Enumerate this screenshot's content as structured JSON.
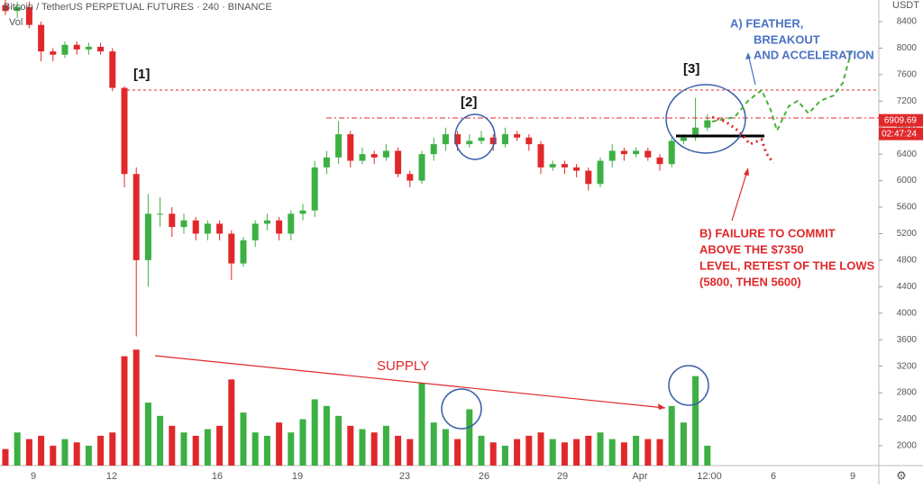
{
  "header": {
    "symbol": "Bitcoin / TetherUS PERPETUAL FUTURES · 240 · BINANCE",
    "volume_label": "Vol",
    "currency": "USDT"
  },
  "chart_data": {
    "type": "candlestick",
    "open": [
      8650,
      8560,
      8620,
      8350,
      7950,
      7900,
      8050,
      7980,
      8020,
      7950,
      7400,
      6100,
      4800,
      5500,
      5500,
      5300,
      5400,
      5200,
      5350,
      5200,
      4750,
      5100,
      5350,
      5400,
      5200,
      5500,
      5550,
      6200,
      6350,
      6700,
      6300,
      6400,
      6350,
      6450,
      6100,
      6000,
      6400,
      6550,
      6700,
      6550,
      6600,
      6650,
      6550,
      6700,
      6650,
      6550,
      6200,
      6250,
      6200,
      6150,
      5950,
      6300,
      6450,
      6400,
      6450,
      6350,
      6250,
      6600,
      6650,
      6800
    ],
    "high": [
      8800,
      8700,
      8700,
      8400,
      8000,
      8100,
      8100,
      8080,
      8080,
      8000,
      7420,
      6200,
      5800,
      5750,
      5600,
      5500,
      5450,
      5400,
      5400,
      5250,
      5150,
      5400,
      5500,
      5450,
      5550,
      5650,
      6300,
      6450,
      6900,
      6750,
      6500,
      6450,
      6550,
      6500,
      6150,
      6450,
      6650,
      6800,
      6750,
      6700,
      6750,
      6700,
      6800,
      6750,
      6700,
      6600,
      6300,
      6300,
      6250,
      6200,
      6350,
      6550,
      6500,
      6500,
      6500,
      6400,
      6650,
      6700,
      7250,
      7000
    ],
    "low": [
      8500,
      8450,
      8300,
      7800,
      7800,
      7850,
      7900,
      7900,
      7900,
      7350,
      5900,
      3650,
      4400,
      5300,
      5150,
      5200,
      5100,
      5100,
      5100,
      4500,
      4700,
      5000,
      5250,
      5100,
      5100,
      5400,
      5450,
      6100,
      6250,
      6200,
      6250,
      6250,
      6300,
      6050,
      5900,
      5950,
      6300,
      6450,
      6450,
      6500,
      6550,
      6450,
      6500,
      6600,
      6450,
      6100,
      6150,
      6100,
      6050,
      5850,
      5900,
      6200,
      6300,
      6350,
      6300,
      6150,
      6200,
      6550,
      6600,
      6750
    ],
    "close": [
      8560,
      8620,
      8350,
      7950,
      7900,
      8050,
      7980,
      8020,
      7950,
      7400,
      6100,
      4800,
      5500,
      5500,
      5300,
      5400,
      5200,
      5350,
      5200,
      4750,
      5100,
      5350,
      5400,
      5200,
      5500,
      5550,
      6200,
      6350,
      6700,
      6300,
      6400,
      6350,
      6450,
      6100,
      6000,
      6400,
      6550,
      6700,
      6550,
      6600,
      6650,
      6550,
      6700,
      6650,
      6550,
      6200,
      6250,
      6200,
      6150,
      5950,
      6300,
      6450,
      6400,
      6450,
      6350,
      6250,
      6600,
      6650,
      6800,
      6910
    ],
    "volume": [
      1950,
      2200,
      2100,
      2150,
      2000,
      2100,
      2050,
      2000,
      2150,
      2200,
      3350,
      3450,
      2650,
      2450,
      2300,
      2200,
      2150,
      2250,
      2300,
      3000,
      2500,
      2200,
      2150,
      2350,
      2200,
      2400,
      2700,
      2600,
      2450,
      2300,
      2250,
      2200,
      2300,
      2150,
      2100,
      2950,
      2350,
      2250,
      2100,
      2550,
      2150,
      2050,
      2000,
      2100,
      2150,
      2200,
      2100,
      2050,
      2100,
      2150,
      2200,
      2100,
      2050,
      2150,
      2100,
      2100,
      2600,
      2350,
      3050,
      2000
    ],
    "up_color": "#3cb043",
    "down_color": "#e0282a",
    "ylim": [
      1700,
      8726
    ],
    "yticks": [
      8400,
      8000,
      7600,
      7200,
      6800,
      6400,
      6000,
      5600,
      5200,
      4800,
      4400,
      4000,
      3600,
      3200,
      2800,
      2400,
      2000
    ],
    "xtick_labels": [
      "9",
      "12",
      "16",
      "19",
      "23",
      "26",
      "29",
      "Apr",
      "12:00",
      "6",
      "9"
    ],
    "last_price": {
      "value": 6909.69,
      "label": "6909.69"
    },
    "countdown": "02:47:24",
    "grid": false
  },
  "annotations": {
    "point_1": "[1]",
    "point_2": "[2]",
    "point_3": "[3]",
    "supply": "SUPPLY",
    "scenario_a": [
      "A)  FEATHER,",
      "BREAKOUT",
      "AND ACCELERATION"
    ],
    "scenario_b": [
      "B) FAILURE TO COMMIT",
      "ABOVE THE $7350",
      "LEVEL, RETEST OF THE LOWS",
      "(5800, THEN 5600)"
    ]
  }
}
